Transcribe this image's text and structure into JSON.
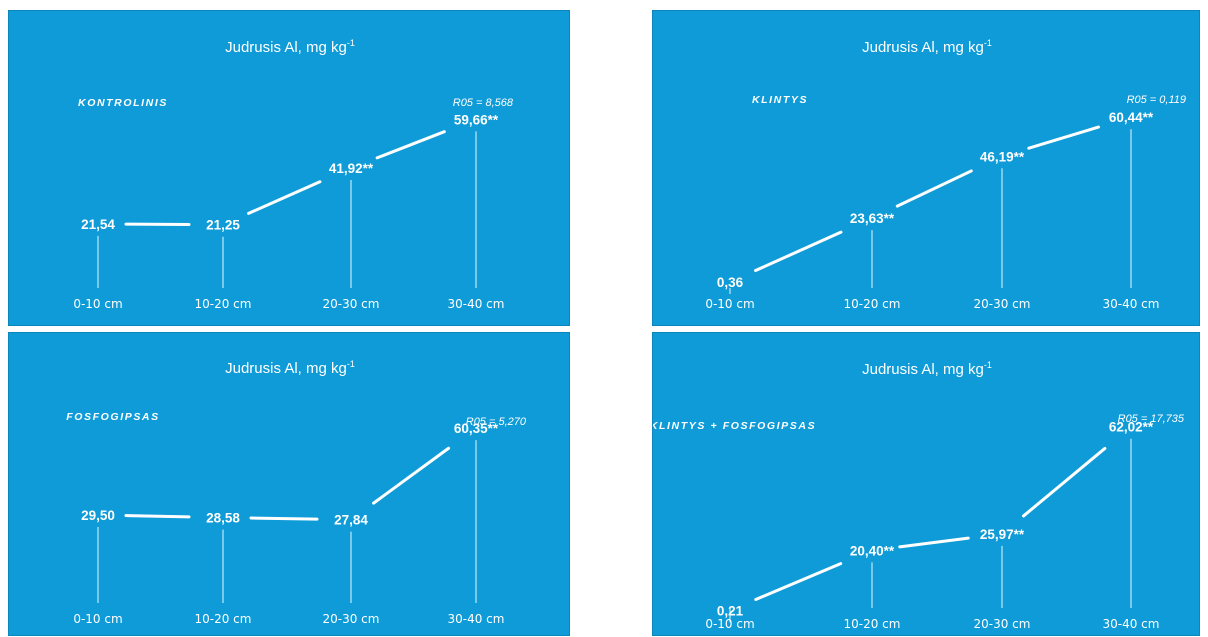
{
  "chart_data": [
    {
      "type": "line",
      "title": "Judrusis Al, mg kg",
      "title_sup": "-1",
      "treatment": "KONTROLINIS",
      "r05": "R05 = 8,568",
      "categories": [
        "0-10 cm",
        "10-20 cm",
        "20-30 cm",
        "30-40 cm"
      ],
      "values": [
        21.54,
        21.25,
        41.92,
        59.66
      ],
      "value_labels": [
        "21,54",
        "21,25",
        "41,92**",
        "59,66**"
      ],
      "ylim": [
        0,
        70
      ],
      "grid": false
    },
    {
      "type": "line",
      "title": "Judrusis Al, mg kg",
      "title_sup": "-1",
      "treatment": "KLINTYS",
      "r05": "R05 = 0,119",
      "categories": [
        "0-10 cm",
        "10-20 cm",
        "20-30 cm",
        "30-40 cm"
      ],
      "values": [
        0.36,
        23.63,
        46.19,
        60.44
      ],
      "value_labels": [
        "0,36",
        "23,63**",
        "46,19**",
        "60,44**"
      ],
      "ylim": [
        0,
        70
      ],
      "grid": false
    },
    {
      "type": "line",
      "title": "Judrusis Al, mg kg",
      "title_sup": "-1",
      "treatment": "FOSFOGIPSAS",
      "r05": "R05 = 5,270",
      "categories": [
        "0-10 cm",
        "10-20 cm",
        "20-30 cm",
        "30-40 cm"
      ],
      "values": [
        29.5,
        28.58,
        27.84,
        60.35
      ],
      "value_labels": [
        "29,50",
        "28,58",
        "27,84",
        "60,35**"
      ],
      "ylim": [
        0,
        70
      ],
      "grid": false
    },
    {
      "type": "line",
      "title": "Judrusis Al, mg kg",
      "title_sup": "-1",
      "treatment": "KLINTYS + FOSFOGIPSAS",
      "r05": "R05 = 17,735",
      "categories": [
        "0-10 cm",
        "10-20 cm",
        "20-30 cm",
        "30-40 cm"
      ],
      "values": [
        0.21,
        20.4,
        25.97,
        62.02
      ],
      "value_labels": [
        "0,21",
        "20,40**",
        "25,97**",
        "62,02**"
      ],
      "ylim": [
        0,
        70
      ],
      "grid": false
    }
  ],
  "colors": {
    "panel_background": "#0f9bd7",
    "foreground": "#ffffff"
  }
}
